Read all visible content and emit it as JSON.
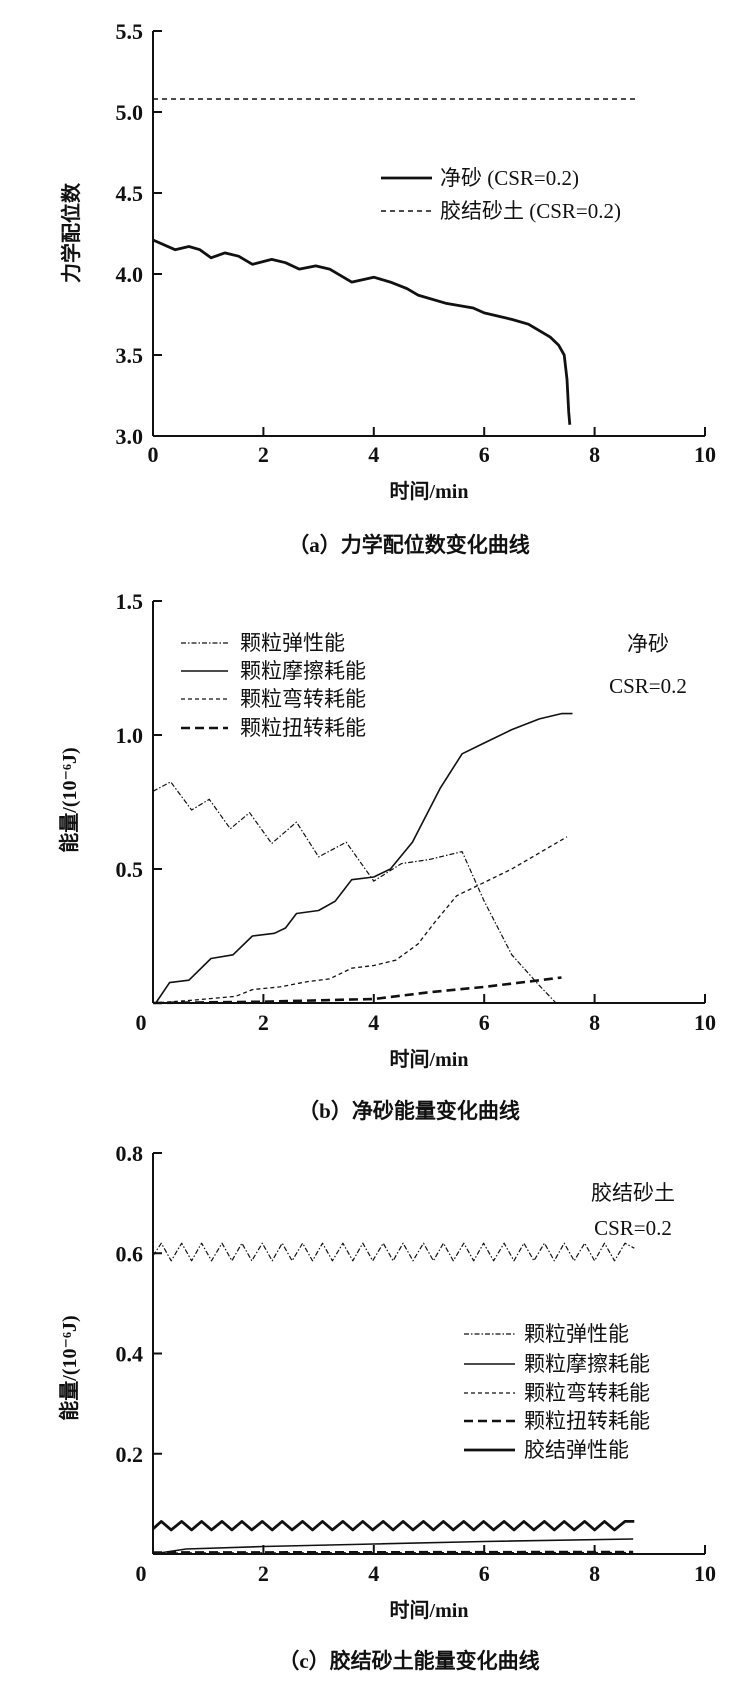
{
  "chart_data": [
    {
      "panel": "a",
      "type": "line",
      "caption": "（a）力学配位数变化曲线",
      "xlabel": "时间/min",
      "ylabel": "力学配位数",
      "xlim": [
        0,
        10
      ],
      "ylim": [
        3.0,
        5.5
      ],
      "xticks": [
        "0",
        "2",
        "4",
        "6",
        "8",
        "10"
      ],
      "yticks": [
        "3.0",
        "3.5",
        "4.0",
        "4.5",
        "5.0",
        "5.5"
      ],
      "legend_position": "right-middle",
      "series": [
        {
          "name": "净砂 (CSR=0.2)",
          "style": "solid-thick",
          "x": [
            0,
            0.4,
            0.65,
            0.85,
            1.05,
            1.3,
            1.55,
            1.8,
            2.15,
            2.4,
            2.65,
            2.95,
            3.2,
            3.6,
            4.0,
            4.3,
            4.6,
            4.8,
            5.3,
            5.8,
            6.0,
            6.5,
            6.8,
            7.0,
            7.2,
            7.35,
            7.45,
            7.5,
            7.53,
            7.55
          ],
          "y": [
            4.21,
            4.15,
            4.17,
            4.15,
            4.1,
            4.13,
            4.11,
            4.06,
            4.09,
            4.07,
            4.03,
            4.05,
            4.03,
            3.95,
            3.98,
            3.95,
            3.91,
            3.87,
            3.82,
            3.79,
            3.76,
            3.72,
            3.69,
            3.65,
            3.61,
            3.56,
            3.5,
            3.35,
            3.15,
            3.07
          ]
        },
        {
          "name": "胶结砂土 (CSR=0.2)",
          "style": "dashed",
          "x": [
            0,
            8.8
          ],
          "y": [
            5.08,
            5.08
          ]
        }
      ]
    },
    {
      "panel": "b",
      "type": "line",
      "caption": "（b）净砂能量变化曲线",
      "annotation": [
        "净砂",
        "CSR=0.2"
      ],
      "xlabel": "时间/min",
      "ylabel": "能量/(10⁻⁶J)",
      "xlim": [
        0,
        10
      ],
      "ylim": [
        0,
        1.5
      ],
      "xticks": [
        "0",
        "2",
        "4",
        "6",
        "8",
        "10"
      ],
      "yticks": [
        "",
        "0.5",
        "1.0",
        "1.5"
      ],
      "legend_position": "top-left",
      "series": [
        {
          "name": "颗粒弹性能",
          "style": "dashdot",
          "x": [
            0,
            0.32,
            0.7,
            1.02,
            1.4,
            1.75,
            2.15,
            2.6,
            3.0,
            3.5,
            4.0,
            4.5,
            5.0,
            5.6,
            6.0,
            6.5,
            7.0,
            7.3
          ],
          "y": [
            0.79,
            0.825,
            0.72,
            0.76,
            0.65,
            0.71,
            0.595,
            0.675,
            0.545,
            0.6,
            0.455,
            0.52,
            0.535,
            0.565,
            0.38,
            0.18,
            0.065,
            0.0
          ]
        },
        {
          "name": "颗粒摩擦耗能",
          "style": "solid",
          "x": [
            0.05,
            0.3,
            0.65,
            1.05,
            1.45,
            1.8,
            2.2,
            2.4,
            2.6,
            3.0,
            3.3,
            3.6,
            4.0,
            4.3,
            4.7,
            5.2,
            5.6,
            6.0,
            6.5,
            7.0,
            7.4,
            7.6
          ],
          "y": [
            0.0,
            0.076,
            0.085,
            0.166,
            0.18,
            0.25,
            0.26,
            0.28,
            0.334,
            0.345,
            0.38,
            0.46,
            0.47,
            0.5,
            0.6,
            0.8,
            0.93,
            0.97,
            1.02,
            1.06,
            1.08,
            1.08
          ]
        },
        {
          "name": "颗粒弯转耗能",
          "style": "short-dash",
          "x": [
            0,
            0.7,
            1.5,
            1.8,
            2.3,
            2.8,
            3.2,
            3.6,
            4.0,
            4.4,
            4.8,
            5.1,
            5.5,
            5.9,
            6.5,
            7.0,
            7.5
          ],
          "y": [
            0.0,
            0.01,
            0.025,
            0.05,
            0.06,
            0.08,
            0.09,
            0.13,
            0.14,
            0.16,
            0.22,
            0.3,
            0.4,
            0.44,
            0.5,
            0.56,
            0.62
          ]
        },
        {
          "name": "颗粒扭转耗能",
          "style": "long-dash",
          "x": [
            0,
            2,
            4,
            5,
            6,
            6.8,
            7.4
          ],
          "y": [
            0.0,
            0.005,
            0.015,
            0.04,
            0.06,
            0.08,
            0.095
          ]
        }
      ]
    },
    {
      "panel": "c",
      "type": "line",
      "caption": "（c）胶结砂土能量变化曲线",
      "annotation": [
        "胶结砂土",
        "CSR=0.2"
      ],
      "xlabel": "时间/min",
      "ylabel": "能量/(10⁻⁶J)",
      "xlim": [
        0,
        10
      ],
      "ylim": [
        0,
        0.8
      ],
      "xticks": [
        "0",
        "2",
        "4",
        "6",
        "8",
        "10"
      ],
      "yticks": [
        "",
        "0.2",
        "0.4",
        "0.6",
        "0.8"
      ],
      "legend_position": "right-middle",
      "series": [
        {
          "name": "颗粒弹性能",
          "style": "dashdot",
          "x": [
            0,
            0.15,
            0.33,
            0.52,
            0.7,
            0.88,
            1.06,
            1.25,
            1.43,
            1.61,
            1.79,
            1.98,
            2.16,
            2.34,
            2.52,
            2.71,
            2.89,
            3.07,
            3.25,
            3.44,
            3.62,
            3.8,
            3.98,
            4.17,
            4.35,
            4.53,
            4.71,
            4.9,
            5.08,
            5.26,
            5.44,
            5.63,
            5.81,
            5.99,
            6.17,
            6.36,
            6.54,
            6.72,
            6.9,
            7.09,
            7.27,
            7.45,
            7.63,
            7.82,
            8.0,
            8.18,
            8.36,
            8.55,
            8.72
          ],
          "y": [
            0.595,
            0.62,
            0.585,
            0.62,
            0.585,
            0.62,
            0.585,
            0.62,
            0.585,
            0.62,
            0.585,
            0.62,
            0.585,
            0.62,
            0.585,
            0.62,
            0.585,
            0.62,
            0.585,
            0.62,
            0.585,
            0.62,
            0.585,
            0.62,
            0.585,
            0.62,
            0.585,
            0.62,
            0.585,
            0.62,
            0.585,
            0.62,
            0.585,
            0.62,
            0.585,
            0.62,
            0.585,
            0.62,
            0.585,
            0.62,
            0.585,
            0.62,
            0.585,
            0.62,
            0.585,
            0.62,
            0.585,
            0.62,
            0.61
          ]
        },
        {
          "name": "颗粒摩擦耗能",
          "style": "solid",
          "x": [
            0,
            0.6,
            2,
            4,
            6,
            8.7
          ],
          "y": [
            0.0,
            0.01,
            0.015,
            0.02,
            0.025,
            0.03
          ]
        },
        {
          "name": "颗粒弯转耗能",
          "style": "short-dash",
          "x": [
            0,
            8.7
          ],
          "y": [
            0.002,
            0.003
          ]
        },
        {
          "name": "颗粒扭转耗能",
          "style": "long-dash",
          "x": [
            0,
            8.7
          ],
          "y": [
            0.003,
            0.004
          ]
        },
        {
          "name": "胶结弹性能",
          "style": "solid-thick",
          "x": [
            0,
            0.15,
            0.33,
            0.52,
            0.7,
            0.88,
            1.06,
            1.25,
            1.43,
            1.61,
            1.79,
            1.98,
            2.16,
            2.34,
            2.52,
            2.71,
            2.89,
            3.07,
            3.25,
            3.44,
            3.62,
            3.8,
            3.98,
            4.17,
            4.35,
            4.53,
            4.71,
            4.9,
            5.08,
            5.26,
            5.44,
            5.63,
            5.81,
            5.99,
            6.17,
            6.36,
            6.54,
            6.72,
            6.9,
            7.09,
            7.27,
            7.45,
            7.63,
            7.82,
            8.0,
            8.18,
            8.36,
            8.55,
            8.72
          ],
          "y": [
            0.05,
            0.065,
            0.048,
            0.065,
            0.048,
            0.065,
            0.048,
            0.065,
            0.048,
            0.065,
            0.048,
            0.065,
            0.048,
            0.065,
            0.048,
            0.065,
            0.048,
            0.065,
            0.048,
            0.065,
            0.048,
            0.065,
            0.048,
            0.065,
            0.048,
            0.065,
            0.048,
            0.065,
            0.048,
            0.065,
            0.048,
            0.065,
            0.048,
            0.065,
            0.048,
            0.065,
            0.048,
            0.065,
            0.048,
            0.065,
            0.048,
            0.065,
            0.048,
            0.065,
            0.048,
            0.065,
            0.048,
            0.065,
            0.065
          ]
        }
      ]
    }
  ]
}
